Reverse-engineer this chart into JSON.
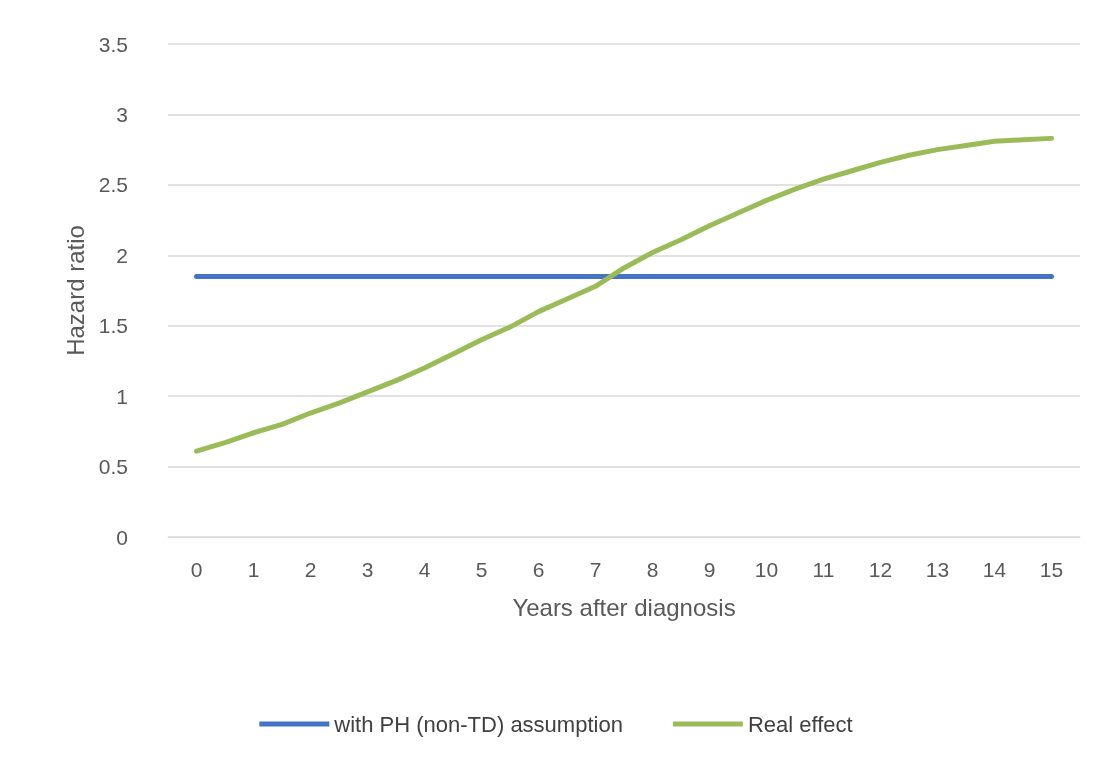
{
  "chart_data": {
    "type": "line",
    "xlabel": "Years after diagnosis",
    "ylabel": "Hazard ratio",
    "xlim": [
      -0.5,
      15.5
    ],
    "xticks": [
      0,
      1,
      2,
      3,
      4,
      5,
      6,
      7,
      8,
      9,
      10,
      11,
      12,
      13,
      14,
      15
    ],
    "ylim": [
      0,
      3.5
    ],
    "yticks": [
      0,
      0.5,
      1,
      1.5,
      2,
      2.5,
      3,
      3.5
    ],
    "series": [
      {
        "name": "with PH (non-TD) assumption",
        "color": "#4472c4",
        "x": [
          0,
          15
        ],
        "values": [
          1.85,
          1.85
        ]
      },
      {
        "name": "Real effect",
        "color": "#9bbb59",
        "x": [
          0,
          0.5,
          1,
          1.5,
          2,
          2.5,
          3,
          3.5,
          4,
          4.5,
          5,
          5.5,
          6,
          6.5,
          7,
          7.5,
          8,
          8.5,
          9,
          9.5,
          10,
          10.5,
          11,
          11.5,
          12,
          12.5,
          13,
          13.5,
          14,
          14.5,
          15
        ],
        "values": [
          0.61,
          0.67,
          0.74,
          0.8,
          0.88,
          0.95,
          1.03,
          1.11,
          1.2,
          1.3,
          1.4,
          1.49,
          1.6,
          1.69,
          1.78,
          1.91,
          2.02,
          2.11,
          2.21,
          2.3,
          2.39,
          2.47,
          2.54,
          2.6,
          2.66,
          2.71,
          2.75,
          2.78,
          2.81,
          2.82,
          2.83
        ]
      }
    ],
    "grid": "y",
    "legend": "bottom",
    "marker": "none",
    "line_style": "solid"
  }
}
